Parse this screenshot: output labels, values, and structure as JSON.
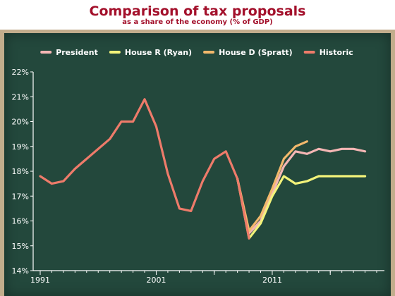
{
  "header": {
    "title": "Comparison of tax proposals",
    "subtitle": "as a share of the economy (% of GDP)"
  },
  "colors": {
    "title": "#a3102b",
    "board": "#23483c",
    "frame": "#c2ad8c",
    "axis": "#ffffff"
  },
  "chart_data": {
    "type": "line",
    "title": "Comparison of tax proposals",
    "subtitle": "as a share of the economy (% of GDP)",
    "xlabel": "",
    "ylabel": "",
    "xlim": [
      1991,
      2020
    ],
    "ylim": [
      14,
      22
    ],
    "x_ticks": [
      1991,
      2001,
      2011
    ],
    "y_ticks": [
      14,
      15,
      16,
      17,
      18,
      19,
      20,
      21,
      22
    ],
    "y_tick_labels": [
      "14%",
      "15%",
      "16%",
      "17%",
      "18%",
      "19%",
      "20%",
      "21%",
      "22%"
    ],
    "x_tick_labels": [
      "1991",
      "2001",
      "2011"
    ],
    "legend_position": "top",
    "grid": false,
    "series": [
      {
        "name": "President",
        "color": "#f4b6b4",
        "points": [
          [
            2008,
            17.7
          ],
          [
            2009,
            15.5
          ],
          [
            2010,
            16.0
          ],
          [
            2011,
            17.1
          ],
          [
            2012,
            18.2
          ],
          [
            2013,
            18.8
          ],
          [
            2014,
            18.7
          ],
          [
            2015,
            18.9
          ],
          [
            2016,
            18.8
          ],
          [
            2017,
            18.9
          ],
          [
            2018,
            18.9
          ],
          [
            2019,
            18.8
          ]
        ]
      },
      {
        "name": "House R (Ryan)",
        "color": "#f3f37a",
        "points": [
          [
            2008,
            17.7
          ],
          [
            2009,
            15.3
          ],
          [
            2010,
            15.9
          ],
          [
            2011,
            17.0
          ],
          [
            2012,
            17.8
          ],
          [
            2013,
            17.5
          ],
          [
            2014,
            17.6
          ],
          [
            2015,
            17.8
          ],
          [
            2016,
            17.8
          ],
          [
            2017,
            17.8
          ],
          [
            2018,
            17.8
          ],
          [
            2019,
            17.8
          ]
        ]
      },
      {
        "name": "House D (Spratt)",
        "color": "#f2b86c",
        "points": [
          [
            2008,
            17.7
          ],
          [
            2009,
            15.6
          ],
          [
            2010,
            16.2
          ],
          [
            2011,
            17.3
          ],
          [
            2012,
            18.5
          ],
          [
            2013,
            19.0
          ],
          [
            2014,
            19.2
          ]
        ]
      },
      {
        "name": "Historic",
        "color": "#ee7b6a",
        "points": [
          [
            1991,
            17.8
          ],
          [
            1992,
            17.5
          ],
          [
            1993,
            17.6
          ],
          [
            1994,
            18.1
          ],
          [
            1995,
            18.5
          ],
          [
            1996,
            18.9
          ],
          [
            1997,
            19.3
          ],
          [
            1998,
            20.0
          ],
          [
            1999,
            20.0
          ],
          [
            2000,
            20.9
          ],
          [
            2001,
            19.8
          ],
          [
            2002,
            17.9
          ],
          [
            2003,
            16.5
          ],
          [
            2004,
            16.4
          ],
          [
            2005,
            17.6
          ],
          [
            2006,
            18.5
          ],
          [
            2007,
            18.8
          ],
          [
            2008,
            17.7
          ],
          [
            2009,
            15.3
          ]
        ]
      }
    ]
  }
}
